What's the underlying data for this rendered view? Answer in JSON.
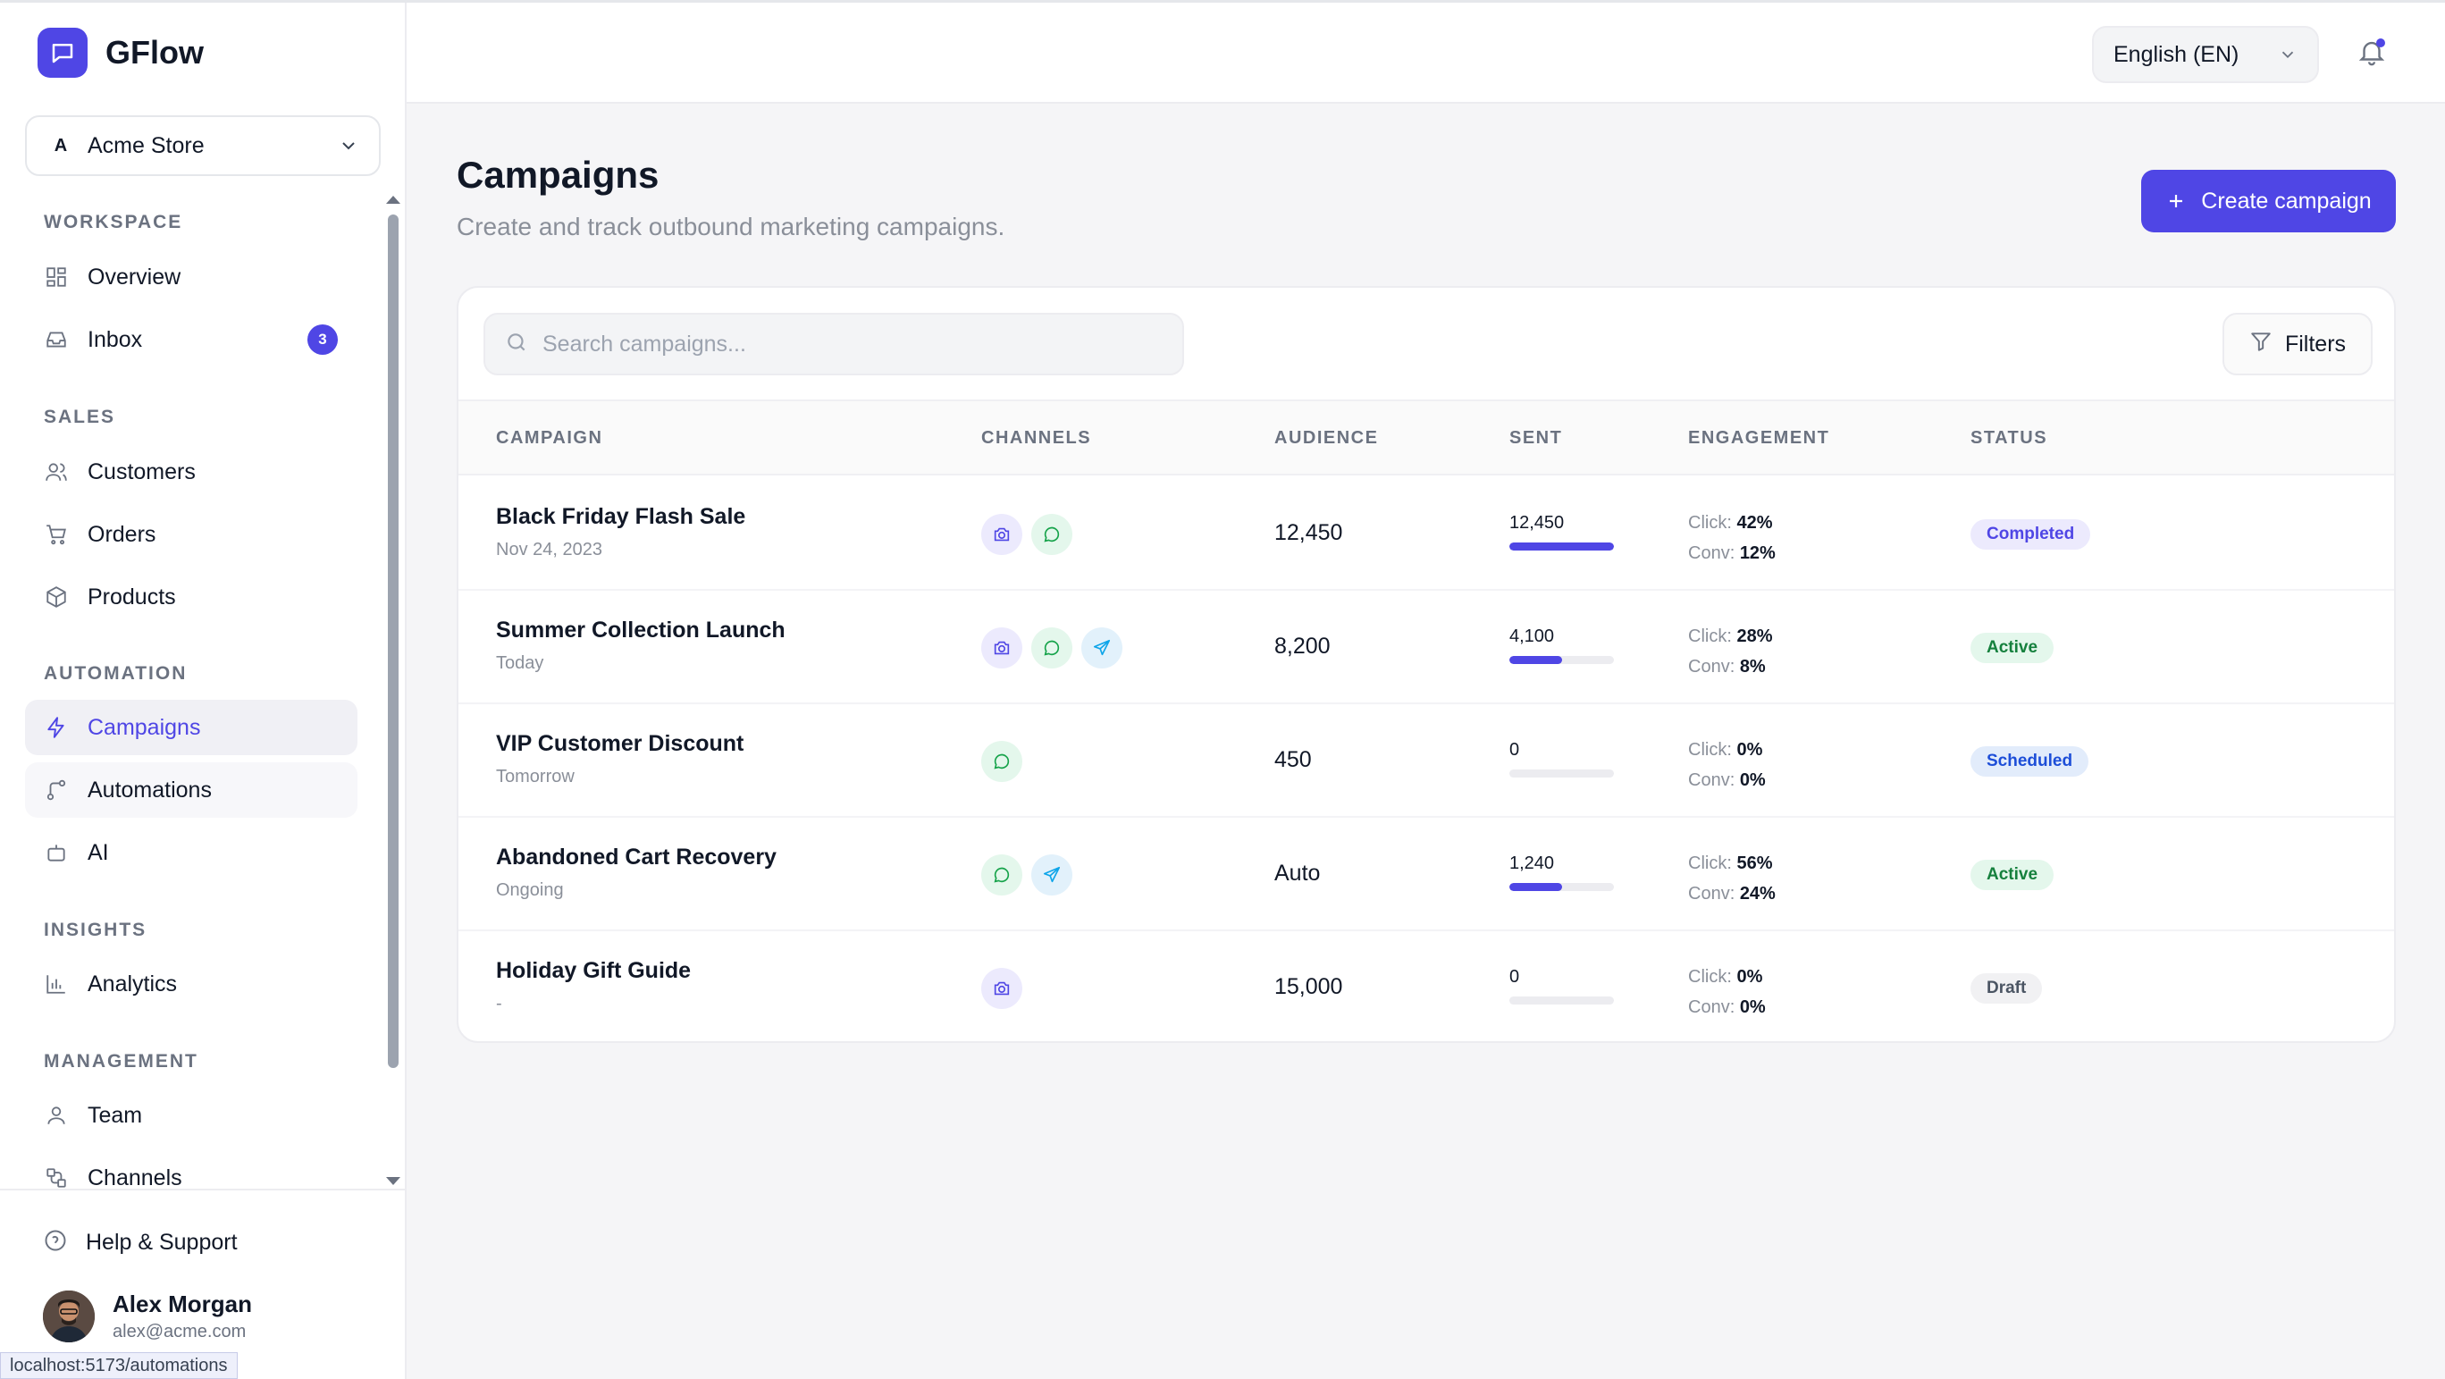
{
  "app": {
    "name": "GFlow"
  },
  "store": {
    "initial": "A",
    "name": "Acme Store"
  },
  "nav": {
    "workspace_title": "WORKSPACE",
    "overview": "Overview",
    "inbox": "Inbox",
    "inbox_count": "3",
    "sales_title": "SALES",
    "customers": "Customers",
    "orders": "Orders",
    "products": "Products",
    "automation_title": "AUTOMATION",
    "campaigns": "Campaigns",
    "automations": "Automations",
    "ai": "AI",
    "insights_title": "INSIGHTS",
    "analytics": "Analytics",
    "management_title": "MANAGEMENT",
    "team": "Team",
    "channels": "Channels"
  },
  "footer": {
    "help": "Help & Support",
    "user_name": "Alex Morgan",
    "user_email": "alex@acme.com"
  },
  "status_url": "localhost:5173/automations",
  "header": {
    "language": "English (EN)"
  },
  "page": {
    "title": "Campaigns",
    "subtitle": "Create and track outbound marketing campaigns.",
    "create_label": "Create campaign"
  },
  "search": {
    "placeholder": "Search campaigns..."
  },
  "filters_label": "Filters",
  "columns": {
    "campaign": "CAMPAIGN",
    "channels": "CHANNELS",
    "audience": "AUDIENCE",
    "sent": "SENT",
    "engagement": "ENGAGEMENT",
    "status": "STATUS"
  },
  "engagement_labels": {
    "click": "Click:",
    "conv": "Conv:"
  },
  "rows": [
    {
      "name": "Black Friday Flash Sale",
      "date": "Nov 24, 2023",
      "channels": [
        "instagram",
        "whatsapp"
      ],
      "audience": "12,450",
      "sent": "12,450",
      "sent_fraction": 1.0,
      "click": "42%",
      "conv": "12%",
      "status": "Completed",
      "status_color": "#4f46e5"
    },
    {
      "name": "Summer Collection Launch",
      "date": "Today",
      "channels": [
        "instagram",
        "whatsapp",
        "telegram"
      ],
      "audience": "8,200",
      "sent": "4,100",
      "sent_fraction": 0.5,
      "click": "28%",
      "conv": "8%",
      "status": "Active",
      "status_color": "#15803d"
    },
    {
      "name": "VIP Customer Discount",
      "date": "Tomorrow",
      "channels": [
        "whatsapp"
      ],
      "audience": "450",
      "sent": "0",
      "sent_fraction": 0.0,
      "click": "0%",
      "conv": "0%",
      "status": "Scheduled",
      "status_color": "#1d4ed8"
    },
    {
      "name": "Abandoned Cart Recovery",
      "date": "Ongoing",
      "channels": [
        "whatsapp",
        "telegram"
      ],
      "audience": "Auto",
      "sent": "1,240",
      "sent_fraction": 0.5,
      "click": "56%",
      "conv": "24%",
      "status": "Active",
      "status_color": "#15803d"
    },
    {
      "name": "Holiday Gift Guide",
      "date": "-",
      "channels": [
        "instagram"
      ],
      "audience": "15,000",
      "sent": "0",
      "sent_fraction": 0.0,
      "click": "0%",
      "conv": "0%",
      "status": "Draft",
      "status_color": "#4b5563"
    }
  ],
  "colors": {
    "accent": "#4f46e5"
  }
}
